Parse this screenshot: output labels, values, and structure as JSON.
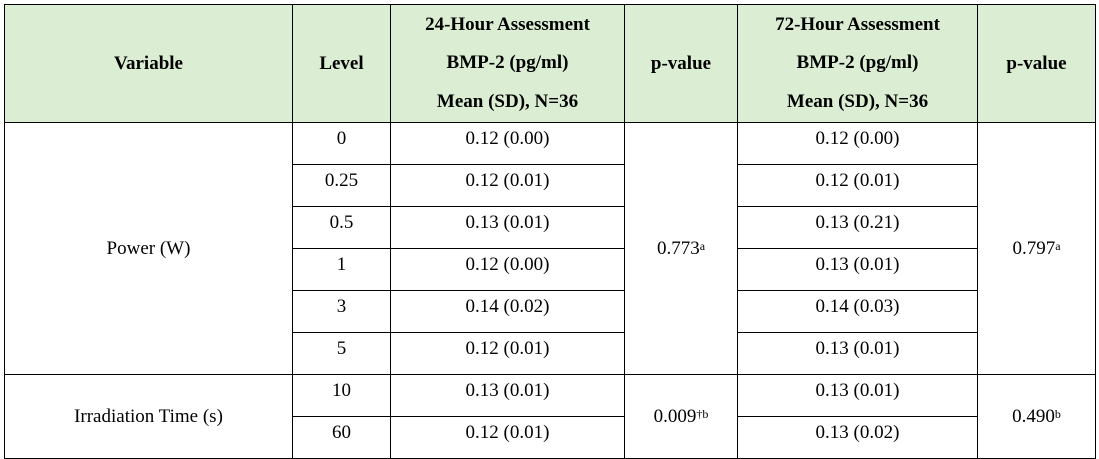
{
  "table": {
    "headers": {
      "variable": "Variable",
      "level": "Level",
      "h24": [
        "24-Hour Assessment",
        "BMP-2 (pg/ml)",
        "Mean (SD), N=36"
      ],
      "p1": "p-value",
      "h72": [
        "72-Hour Assessment",
        "BMP-2 (pg/ml)",
        "Mean (SD), N=36"
      ],
      "p2": "p-value"
    },
    "groups": [
      {
        "variable": "Power (W)",
        "p24": "0.773",
        "p24_sup": "a",
        "p72": "0.797",
        "p72_sup": "a",
        "rows": [
          {
            "level": "0",
            "h24": "0.12 (0.00)",
            "h72": "0.12 (0.00)"
          },
          {
            "level": "0.25",
            "h24": "0.12 (0.01)",
            "h72": "0.12 (0.01)"
          },
          {
            "level": "0.5",
            "h24": "0.13 (0.01)",
            "h72": "0.13 (0.21)"
          },
          {
            "level": "1",
            "h24": "0.12 (0.00)",
            "h72": "0.13 (0.01)"
          },
          {
            "level": "3",
            "h24": "0.14 (0.02)",
            "h72": "0.14 (0.03)"
          },
          {
            "level": "5",
            "h24": "0.12 (0.01)",
            "h72": "0.13 (0.01)"
          }
        ]
      },
      {
        "variable": "Irradiation Time (s)",
        "p24": "0.009",
        "p24_sup": "†b",
        "p72": "0.490",
        "p72_sup": "b",
        "rows": [
          {
            "level": "10",
            "h24": "0.13 (0.01)",
            "h72": "0.13 (0.01)"
          },
          {
            "level": "60",
            "h24": "0.12 (0.01)",
            "h72": "0.13 (0.02)"
          }
        ]
      }
    ]
  }
}
